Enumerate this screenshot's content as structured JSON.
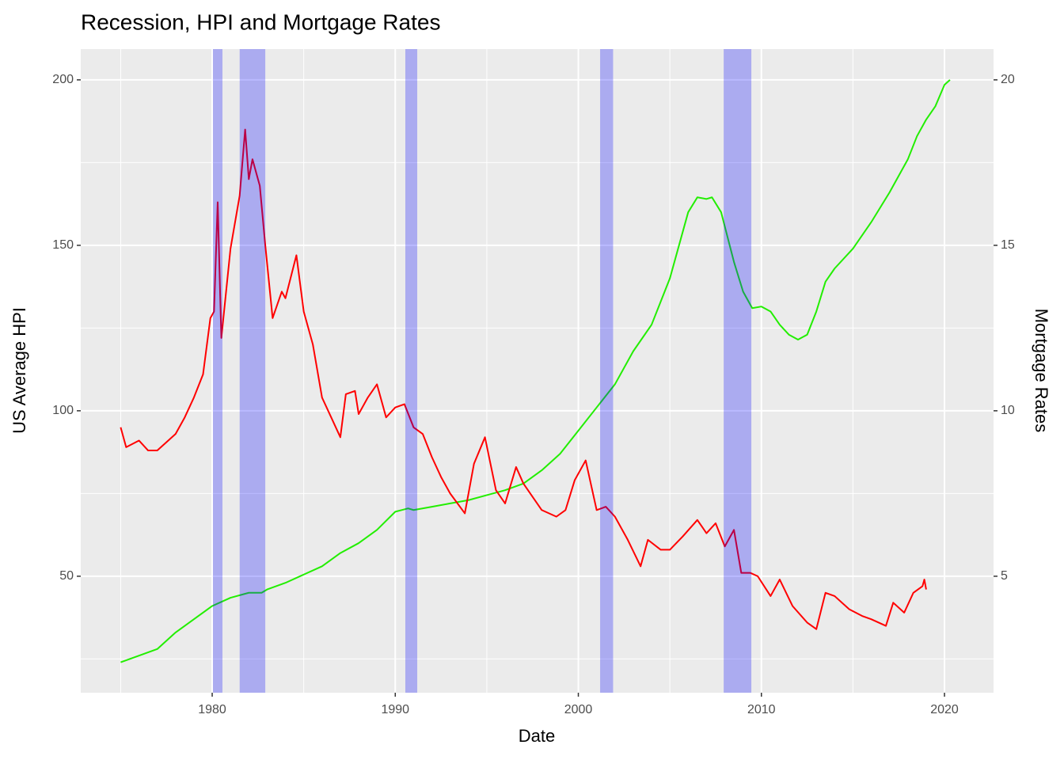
{
  "chart_data": {
    "type": "line",
    "title": "Recession, HPI and Mortgage Rates",
    "x_label": "Date",
    "y_label": "US Average HPI",
    "y2_label": "Mortgage Rates",
    "xlim": [
      1972.82,
      2022.68
    ],
    "xticks": [
      1980,
      1990,
      2000,
      2010,
      2020
    ],
    "xminor": [
      1975,
      1985,
      1995,
      2005,
      2015
    ],
    "ylim": [
      14.8,
      209.3
    ],
    "yticks": [
      50,
      100,
      150,
      200
    ],
    "yminor": [
      25,
      75,
      125,
      175
    ],
    "y2lim": [
      1.48,
      20.93
    ],
    "y2ticks": [
      5,
      10,
      15,
      20
    ],
    "grid": true,
    "shaded_regions": [
      [
        1980.04,
        1980.56
      ],
      [
        1981.5,
        1982.9
      ],
      [
        1990.55,
        1991.2
      ],
      [
        2001.19,
        2001.9
      ],
      [
        2007.94,
        2009.45
      ]
    ],
    "shade_color": "#0000ff",
    "series": [
      {
        "color": "#22ee00",
        "axis": "y",
        "x": [
          1975,
          1976,
          1977,
          1978,
          1979,
          1980,
          1981,
          1982,
          1982.7,
          1983,
          1984,
          1985,
          1986,
          1987,
          1988,
          1989,
          1990,
          1990.7,
          1991,
          1992,
          1993,
          1994,
          1995,
          1996,
          1997,
          1998,
          1999,
          2000,
          2001,
          2002,
          2003,
          2004,
          2005,
          2006,
          2006.5,
          2007,
          2007.3,
          2007.8,
          2008.5,
          2009,
          2009.5,
          2010,
          2010.5,
          2011,
          2011.5,
          2012,
          2012.5,
          2013,
          2013.5,
          2014,
          2015,
          2016,
          2017,
          2018,
          2018.5,
          2019,
          2019.5,
          2020,
          2020.3
        ],
        "values": [
          24,
          26,
          28,
          33,
          37,
          41,
          43.5,
          45,
          45,
          46,
          48,
          50.5,
          53,
          57,
          60,
          64,
          69.5,
          70.5,
          70,
          71,
          72,
          73,
          74.5,
          76,
          78,
          82,
          87,
          94,
          101,
          108,
          118,
          126,
          140,
          160,
          164.5,
          164,
          164.5,
          160,
          145,
          136,
          131,
          131.5,
          130,
          126,
          123,
          121.5,
          123,
          130,
          139,
          143,
          149,
          157,
          166,
          176,
          183,
          188,
          192,
          198.5,
          200
        ]
      },
      {
        "color": "#ff0000",
        "axis": "y2",
        "x": [
          1975,
          1975.3,
          1976,
          1976.5,
          1977,
          1978,
          1978.5,
          1979,
          1979.5,
          1979.9,
          1980.1,
          1980.3,
          1980.5,
          1981,
          1981.5,
          1981.8,
          1982,
          1982.2,
          1982.6,
          1982.9,
          1983.3,
          1983.8,
          1984,
          1984.6,
          1985,
          1985.5,
          1986,
          1986.5,
          1987,
          1987.3,
          1987.8,
          1988,
          1988.5,
          1989,
          1989.5,
          1990,
          1990.5,
          1991,
          1991.5,
          1992,
          1992.5,
          1993,
          1993.8,
          1994.3,
          1994.9,
          1995.5,
          1996,
          1996.6,
          1997,
          1997.5,
          1998,
          1998.8,
          1999.3,
          1999.8,
          2000.4,
          2001,
          2001.5,
          2002,
          2002.7,
          2003.4,
          2003.8,
          2004.5,
          2005,
          2005.7,
          2006.5,
          2007,
          2007.5,
          2008,
          2008.5,
          2008.9,
          2009.4,
          2009.8,
          2010.5,
          2011,
          2011.7,
          2012.5,
          2013,
          2013.5,
          2014,
          2014.8,
          2015.5,
          2016,
          2016.8,
          2017.2,
          2017.8,
          2018.3,
          2018.8,
          2018.9,
          2019
        ],
        "values": [
          9.5,
          8.9,
          9.1,
          8.8,
          8.8,
          9.3,
          9.8,
          10.4,
          11.1,
          12.8,
          13.0,
          16.3,
          12.2,
          14.9,
          16.5,
          18.5,
          17.0,
          17.6,
          16.8,
          15.0,
          12.8,
          13.6,
          13.4,
          14.7,
          13.0,
          12.0,
          10.4,
          9.8,
          9.2,
          10.5,
          10.6,
          9.9,
          10.4,
          10.8,
          9.8,
          10.1,
          10.2,
          9.5,
          9.3,
          8.6,
          8.0,
          7.5,
          6.9,
          8.4,
          9.2,
          7.6,
          7.2,
          8.3,
          7.8,
          7.4,
          7.0,
          6.8,
          7.0,
          7.9,
          8.5,
          7.0,
          7.1,
          6.8,
          6.1,
          5.3,
          6.1,
          5.8,
          5.8,
          6.2,
          6.7,
          6.3,
          6.6,
          5.9,
          6.4,
          5.1,
          5.1,
          5.0,
          4.4,
          4.9,
          4.1,
          3.6,
          3.4,
          4.5,
          4.4,
          4.0,
          3.8,
          3.7,
          3.5,
          4.2,
          3.9,
          4.5,
          4.7,
          4.9,
          4.6
        ]
      }
    ]
  }
}
